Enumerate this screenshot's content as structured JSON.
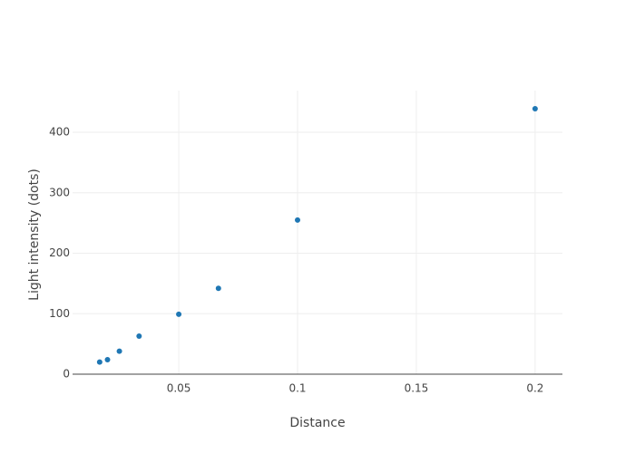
{
  "chart_data": {
    "type": "scatter",
    "x_label": "Distance",
    "y_label": "Light intensity (dots)",
    "series": [
      {
        "color": "#1f77b4",
        "x": [
          0.0167,
          0.02,
          0.025,
          0.0333,
          0.05,
          0.0667,
          0.1,
          0.2
        ],
        "values": [
          20,
          24,
          38,
          63,
          99,
          142,
          255,
          439
        ]
      }
    ],
    "xlim": [
      0.0053,
      0.2115
    ],
    "ylim": [
      0,
      469
    ],
    "xticks": [
      0.05,
      0.1,
      0.15,
      0.2
    ],
    "yticks": [
      0,
      100,
      200,
      300,
      400
    ],
    "grid": true
  }
}
